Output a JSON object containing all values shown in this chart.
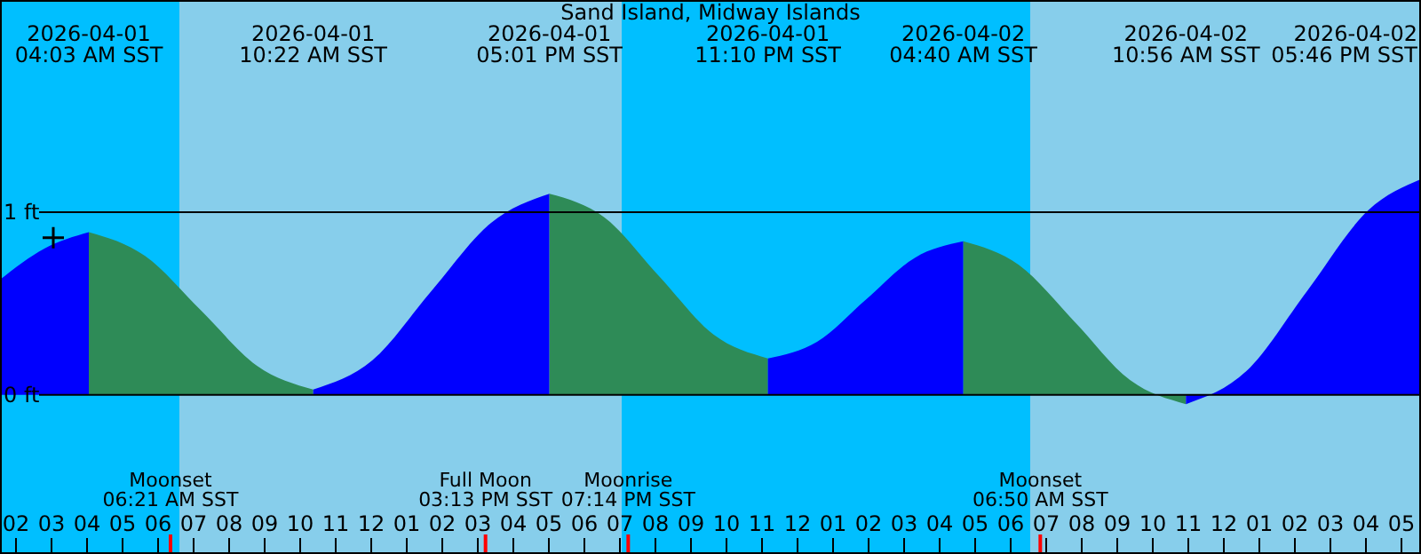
{
  "chart_data": {
    "type": "area",
    "title": "Sand Island, Midway Islands",
    "xlim": [
      "2026-04-01T01:33",
      "2026-04-02T17:33"
    ],
    "ylim": [
      -0.87,
      2.16
    ],
    "yticks": [
      {
        "value": 0,
        "label": "0 ft"
      },
      {
        "value": 1,
        "label": "1 ft"
      }
    ],
    "grid": "y",
    "xticks": [
      {
        "value": "2026-04-01T02:00",
        "label": "02"
      },
      {
        "value": "2026-04-01T03:00",
        "label": "03"
      },
      {
        "value": "2026-04-01T04:00",
        "label": "04"
      },
      {
        "value": "2026-04-01T05:00",
        "label": "05"
      },
      {
        "value": "2026-04-01T06:00",
        "label": "06"
      },
      {
        "value": "2026-04-01T06:21",
        "label": null
      },
      {
        "value": "2026-04-01T07:00",
        "label": "07"
      },
      {
        "value": "2026-04-01T08:00",
        "label": "08"
      },
      {
        "value": "2026-04-01T09:00",
        "label": "09"
      },
      {
        "value": "2026-04-01T10:00",
        "label": "10"
      },
      {
        "value": "2026-04-01T11:00",
        "label": "11"
      },
      {
        "value": "2026-04-01T12:00",
        "label": "12"
      },
      {
        "value": "2026-04-01T13:00",
        "label": "01"
      },
      {
        "value": "2026-04-01T14:00",
        "label": "02"
      },
      {
        "value": "2026-04-01T15:00",
        "label": "03"
      },
      {
        "value": "2026-04-01T15:13",
        "label": null
      },
      {
        "value": "2026-04-01T16:00",
        "label": "04"
      },
      {
        "value": "2026-04-01T17:00",
        "label": "05"
      },
      {
        "value": "2026-04-01T18:00",
        "label": "06"
      },
      {
        "value": "2026-04-01T19:00",
        "label": "07"
      },
      {
        "value": "2026-04-01T19:14",
        "label": null
      },
      {
        "value": "2026-04-01T20:00",
        "label": "08"
      },
      {
        "value": "2026-04-01T21:00",
        "label": "09"
      },
      {
        "value": "2026-04-01T22:00",
        "label": "10"
      },
      {
        "value": "2026-04-01T23:00",
        "label": "11"
      },
      {
        "value": "2026-04-02T00:00",
        "label": "12"
      },
      {
        "value": "2026-04-02T01:00",
        "label": "01"
      },
      {
        "value": "2026-04-02T02:00",
        "label": "02"
      },
      {
        "value": "2026-04-02T03:00",
        "label": "03"
      },
      {
        "value": "2026-04-02T04:00",
        "label": "04"
      },
      {
        "value": "2026-04-02T05:00",
        "label": "05"
      },
      {
        "value": "2026-04-02T06:00",
        "label": "06"
      },
      {
        "value": "2026-04-02T06:50",
        "label": null
      },
      {
        "value": "2026-04-02T07:00",
        "label": "07"
      },
      {
        "value": "2026-04-02T08:00",
        "label": "08"
      },
      {
        "value": "2026-04-02T09:00",
        "label": "09"
      },
      {
        "value": "2026-04-02T10:00",
        "label": "10"
      },
      {
        "value": "2026-04-02T11:00",
        "label": "11"
      },
      {
        "value": "2026-04-02T12:00",
        "label": "12"
      },
      {
        "value": "2026-04-02T13:00",
        "label": "01"
      },
      {
        "value": "2026-04-02T14:00",
        "label": "02"
      },
      {
        "value": "2026-04-02T15:00",
        "label": "03"
      },
      {
        "value": "2026-04-02T16:00",
        "label": "04"
      },
      {
        "value": "2026-04-02T17:00",
        "label": "05"
      }
    ],
    "bands": [
      {
        "axis": "x",
        "from": "2026-04-01T01:33",
        "to": "2026-04-01T06:36",
        "color": "#00bfff"
      },
      {
        "axis": "x",
        "from": "2026-04-01T06:36",
        "to": "2026-04-01T19:03",
        "color": "#87ceeb"
      },
      {
        "axis": "x",
        "from": "2026-04-01T19:03",
        "to": "2026-04-02T06:33",
        "color": "#00bfff"
      },
      {
        "axis": "x",
        "from": "2026-04-02T06:33",
        "to": "2026-04-02T17:33",
        "color": "#87ceeb"
      }
    ],
    "series": [
      {
        "color": "#0000ff",
        "x": [
          "2026-04-01T01:33",
          "2026-04-01T02:48",
          "2026-04-01T04:03"
        ],
        "values": [
          0.63,
          0.8,
          0.89
        ]
      },
      {
        "color": "#2e8b57",
        "x": [
          "2026-04-01T04:03",
          "2026-04-01T05:38",
          "2026-04-01T07:13",
          "2026-04-01T08:47",
          "2026-04-01T10:22"
        ],
        "values": [
          0.89,
          0.76,
          0.46,
          0.16,
          0.03
        ]
      },
      {
        "color": "#0000ff",
        "x": [
          "2026-04-01T10:22",
          "2026-04-01T12:02",
          "2026-04-01T13:42",
          "2026-04-01T15:22",
          "2026-04-01T17:01"
        ],
        "values": [
          0.03,
          0.19,
          0.57,
          0.94,
          1.1
        ]
      },
      {
        "color": "#2e8b57",
        "x": [
          "2026-04-01T17:01",
          "2026-04-01T18:34",
          "2026-04-01T20:06",
          "2026-04-01T21:38",
          "2026-04-01T23:10"
        ],
        "values": [
          1.1,
          0.97,
          0.65,
          0.33,
          0.2
        ]
      },
      {
        "color": "#0000ff",
        "x": [
          "2026-04-01T23:10",
          "2026-04-02T00:33",
          "2026-04-02T01:55",
          "2026-04-02T03:18",
          "2026-04-02T04:40"
        ],
        "values": [
          0.2,
          0.29,
          0.52,
          0.75,
          0.84
        ]
      },
      {
        "color": "#2e8b57",
        "x": [
          "2026-04-02T04:40",
          "2026-04-02T06:14",
          "2026-04-02T07:48",
          "2026-04-02T09:22",
          "2026-04-02T10:56"
        ],
        "values": [
          0.84,
          0.71,
          0.4,
          0.08,
          -0.05
        ]
      },
      {
        "color": "#0000ff",
        "x": [
          "2026-04-02T10:56",
          "2026-04-02T12:38",
          "2026-04-02T14:21",
          "2026-04-02T16:04",
          "2026-04-02T17:33"
        ],
        "values": [
          -0.05,
          0.13,
          0.57,
          1.01,
          1.18
        ]
      },
      {
        "type": "scatter",
        "color": "#000000",
        "marker": "cross",
        "x": [
          "2026-04-01T03:03"
        ],
        "values": [
          0.86
        ]
      }
    ],
    "annotations": [
      "2026-04-01\n04:03 AM SST",
      "2026-04-01\n10:22 AM SST",
      "2026-04-01\n05:01 PM SST",
      "2026-04-01\n11:10 PM SST",
      "2026-04-02\n04:40 AM SST",
      "2026-04-02\n10:56 AM SST",
      "2026-04-02\n05:46 PM SST",
      "Moonset\n06:21 AM SST",
      "Full Moon\n03:13 PM SST",
      "Moonrise\n07:14 PM SST",
      "Moonset\n06:50 AM SST"
    ]
  }
}
